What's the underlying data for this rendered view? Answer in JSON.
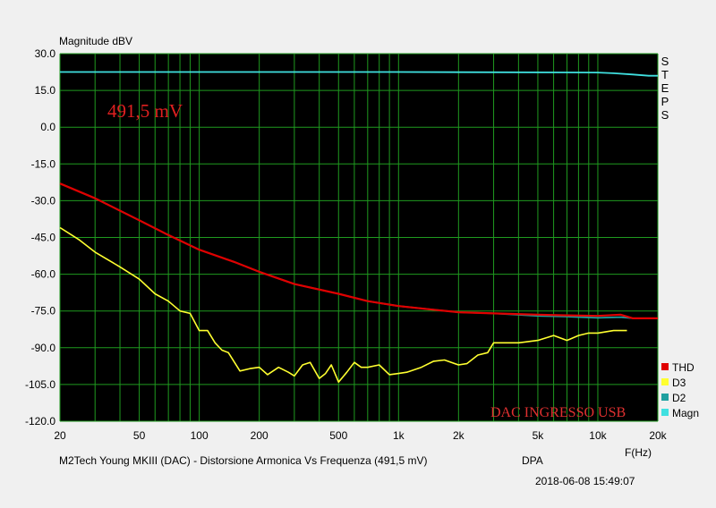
{
  "chart_data": {
    "type": "line",
    "ylabel": "Magnitude dBV",
    "xlabel": "F(Hz)",
    "right_label": "STEPS",
    "y_ticks": [
      "30.0",
      "15.0",
      "0.0",
      "-15.0",
      "-30.0",
      "-45.0",
      "-60.0",
      "-75.0",
      "-90.0",
      "-105.0",
      "-120.0"
    ],
    "ylim": [
      -120,
      30
    ],
    "x_scale": "log",
    "xlim": [
      20,
      20000
    ],
    "x_ticks": [
      {
        "v": 20,
        "t": "20"
      },
      {
        "v": 50,
        "t": "50"
      },
      {
        "v": 100,
        "t": "100"
      },
      {
        "v": 200,
        "t": "200"
      },
      {
        "v": 500,
        "t": "500"
      },
      {
        "v": 1000,
        "t": "1k"
      },
      {
        "v": 2000,
        "t": "2k"
      },
      {
        "v": 5000,
        "t": "5k"
      },
      {
        "v": 10000,
        "t": "10k"
      },
      {
        "v": 20000,
        "t": "20k"
      }
    ],
    "grid": true,
    "background": "#000000",
    "grid_color": "#1f9a1f",
    "legend_position": "bottom-right",
    "annotations": {
      "voltage": "491,5 mV",
      "condition": "DAC INGRESSO USB"
    },
    "series": [
      {
        "name": "Magn",
        "color": "#40e0e0",
        "x": [
          20,
          100,
          1000,
          10000,
          12000,
          15000,
          18000,
          20000
        ],
        "y": [
          22.5,
          22.5,
          22.5,
          22.3,
          22,
          21.5,
          21,
          21
        ]
      },
      {
        "name": "D2",
        "color": "#20a0a0",
        "x": [
          20,
          30,
          50,
          70,
          100,
          150,
          200,
          300,
          500,
          700,
          1000,
          1500,
          2000,
          3000,
          5000,
          7000,
          10000,
          13000,
          15000,
          20000
        ],
        "y": [
          -23,
          -29,
          -38,
          -44,
          -50,
          -55,
          -59,
          -64,
          -68,
          -71,
          -73,
          -74.5,
          -75.5,
          -76,
          -77,
          -77.3,
          -77.8,
          -77.5,
          -78,
          -78
        ]
      },
      {
        "name": "THD",
        "color": "#e00000",
        "x": [
          20,
          30,
          50,
          70,
          100,
          150,
          200,
          300,
          500,
          700,
          1000,
          1500,
          2000,
          3000,
          5000,
          7000,
          10000,
          13000,
          15000,
          20000
        ],
        "y": [
          -23,
          -29,
          -38,
          -44,
          -50,
          -55,
          -59,
          -64,
          -68,
          -71,
          -73,
          -74.5,
          -75.5,
          -76,
          -76.5,
          -76.8,
          -77,
          -76.5,
          -78,
          -78
        ]
      },
      {
        "name": "D3",
        "color": "#ffff30",
        "x": [
          20,
          25,
          30,
          40,
          50,
          60,
          70,
          80,
          90,
          100,
          110,
          120,
          130,
          140,
          160,
          180,
          200,
          220,
          250,
          280,
          300,
          330,
          360,
          400,
          430,
          460,
          500,
          550,
          600,
          650,
          700,
          800,
          900,
          1000,
          1100,
          1300,
          1500,
          1700,
          2000,
          2200,
          2500,
          2800,
          3000,
          3500,
          4000,
          5000,
          6000,
          7000,
          8000,
          9000,
          10000,
          12000,
          14000
        ],
        "y": [
          -41,
          -46,
          -51,
          -57,
          -62,
          -68,
          -71,
          -75,
          -76,
          -83,
          -83,
          -88,
          -91,
          -92,
          -99.5,
          -98.5,
          -98,
          -101,
          -98,
          -100,
          -101.5,
          -97,
          -96,
          -102.5,
          -100.5,
          -97,
          -104,
          -100,
          -96,
          -98,
          -98,
          -97,
          -101,
          -100.5,
          -100,
          -98,
          -95.5,
          -95,
          -97,
          -96.5,
          -93,
          -92,
          -88,
          -88,
          -88,
          -87,
          -85,
          -87,
          -85,
          -84,
          -84,
          -83,
          -83
        ]
      }
    ],
    "legend": [
      "THD",
      "D3",
      "D2",
      "Magn"
    ]
  },
  "footer": {
    "title": "M2Tech Young MKIII (DAC) - Distorsione Armonica Vs Frequenza (491,5 mV)",
    "tag": "DPA",
    "timestamp": "2018-06-08 15:49:07"
  }
}
